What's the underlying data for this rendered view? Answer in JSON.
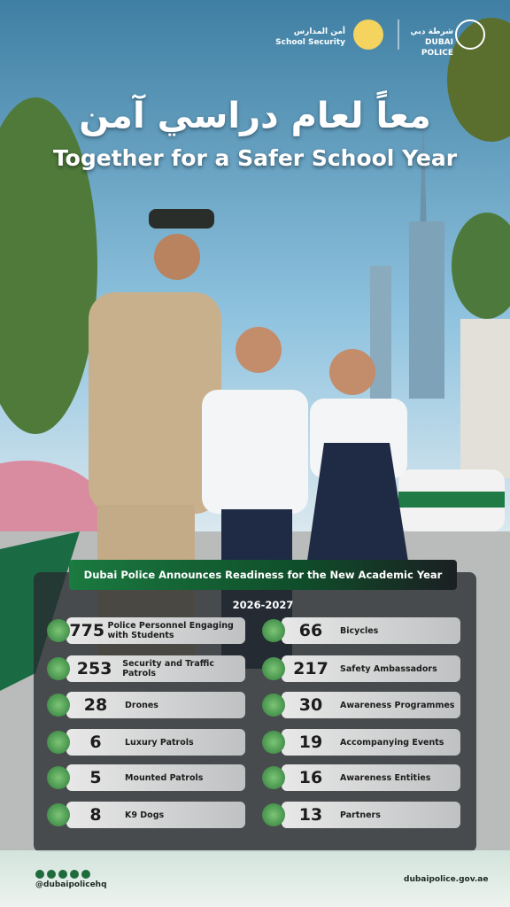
{
  "header": {
    "school_logo_ar": "أمن المدارس",
    "school_logo_en": "School Security",
    "police_logo_ar": "شرطة دبي",
    "police_logo_en": "DUBAI POLICE"
  },
  "title": {
    "arabic": "معاً لعام دراسي آمن",
    "english": "Together for a Safer School Year"
  },
  "banner": "Dubai Police Announces Readiness for the New Academic Year 2026-2027",
  "stats": {
    "left": [
      {
        "number": 775,
        "label": "Police Personnel Engaging with Students"
      },
      {
        "number": 253,
        "label": "Security and Traffic Patrols"
      },
      {
        "number": 28,
        "label": "Drones"
      },
      {
        "number": 6,
        "label": "Luxury Patrols"
      },
      {
        "number": 5,
        "label": "Mounted Patrols"
      },
      {
        "number": 8,
        "label": "K9 Dogs"
      }
    ],
    "right": [
      {
        "number": 66,
        "label": "Bicycles"
      },
      {
        "number": 217,
        "label": "Safety Ambassadors"
      },
      {
        "number": 30,
        "label": "Awareness Programmes"
      },
      {
        "number": 19,
        "label": "Accompanying Events"
      },
      {
        "number": 16,
        "label": "Awareness Entities"
      },
      {
        "number": 13,
        "label": "Partners"
      }
    ]
  },
  "footer": {
    "handle": "@dubaipolicehq",
    "website": "dubaipolice.gov.ae"
  }
}
